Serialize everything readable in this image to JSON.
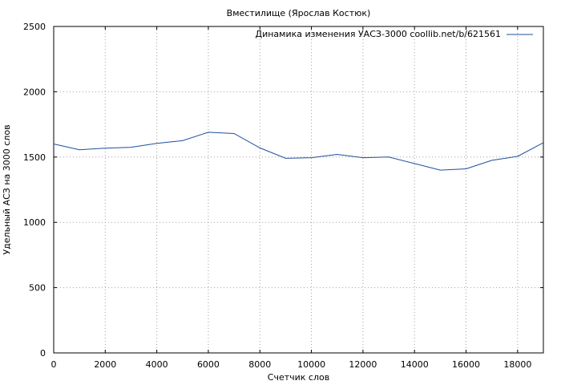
{
  "chart_data": {
    "type": "line",
    "title": "Вместилище (Ярослав Костюк)",
    "xlabel": "Счетчик слов",
    "ylabel": "Удельный АСЗ на 3000 слов",
    "xlim": [
      0,
      19000
    ],
    "ylim": [
      0,
      2500
    ],
    "xticks": [
      0,
      2000,
      4000,
      6000,
      8000,
      10000,
      12000,
      14000,
      16000,
      18000
    ],
    "yticks": [
      0,
      500,
      1000,
      1500,
      2000,
      2500
    ],
    "grid": true,
    "legend_position": "top-right",
    "series": [
      {
        "name": "Динамика изменения УАСЗ-3000 coollib.net/b/621561",
        "color": "#1f4e9c",
        "x": [
          0,
          1000,
          2000,
          3000,
          4000,
          5000,
          6000,
          7000,
          8000,
          9000,
          10000,
          11000,
          12000,
          13000,
          14000,
          15000,
          16000,
          17000,
          18000,
          19000
        ],
        "y": [
          1600,
          1555,
          1568,
          1575,
          1605,
          1625,
          1690,
          1680,
          1570,
          1490,
          1495,
          1520,
          1495,
          1500,
          1450,
          1400,
          1410,
          1475,
          1505,
          1610
        ]
      }
    ]
  }
}
